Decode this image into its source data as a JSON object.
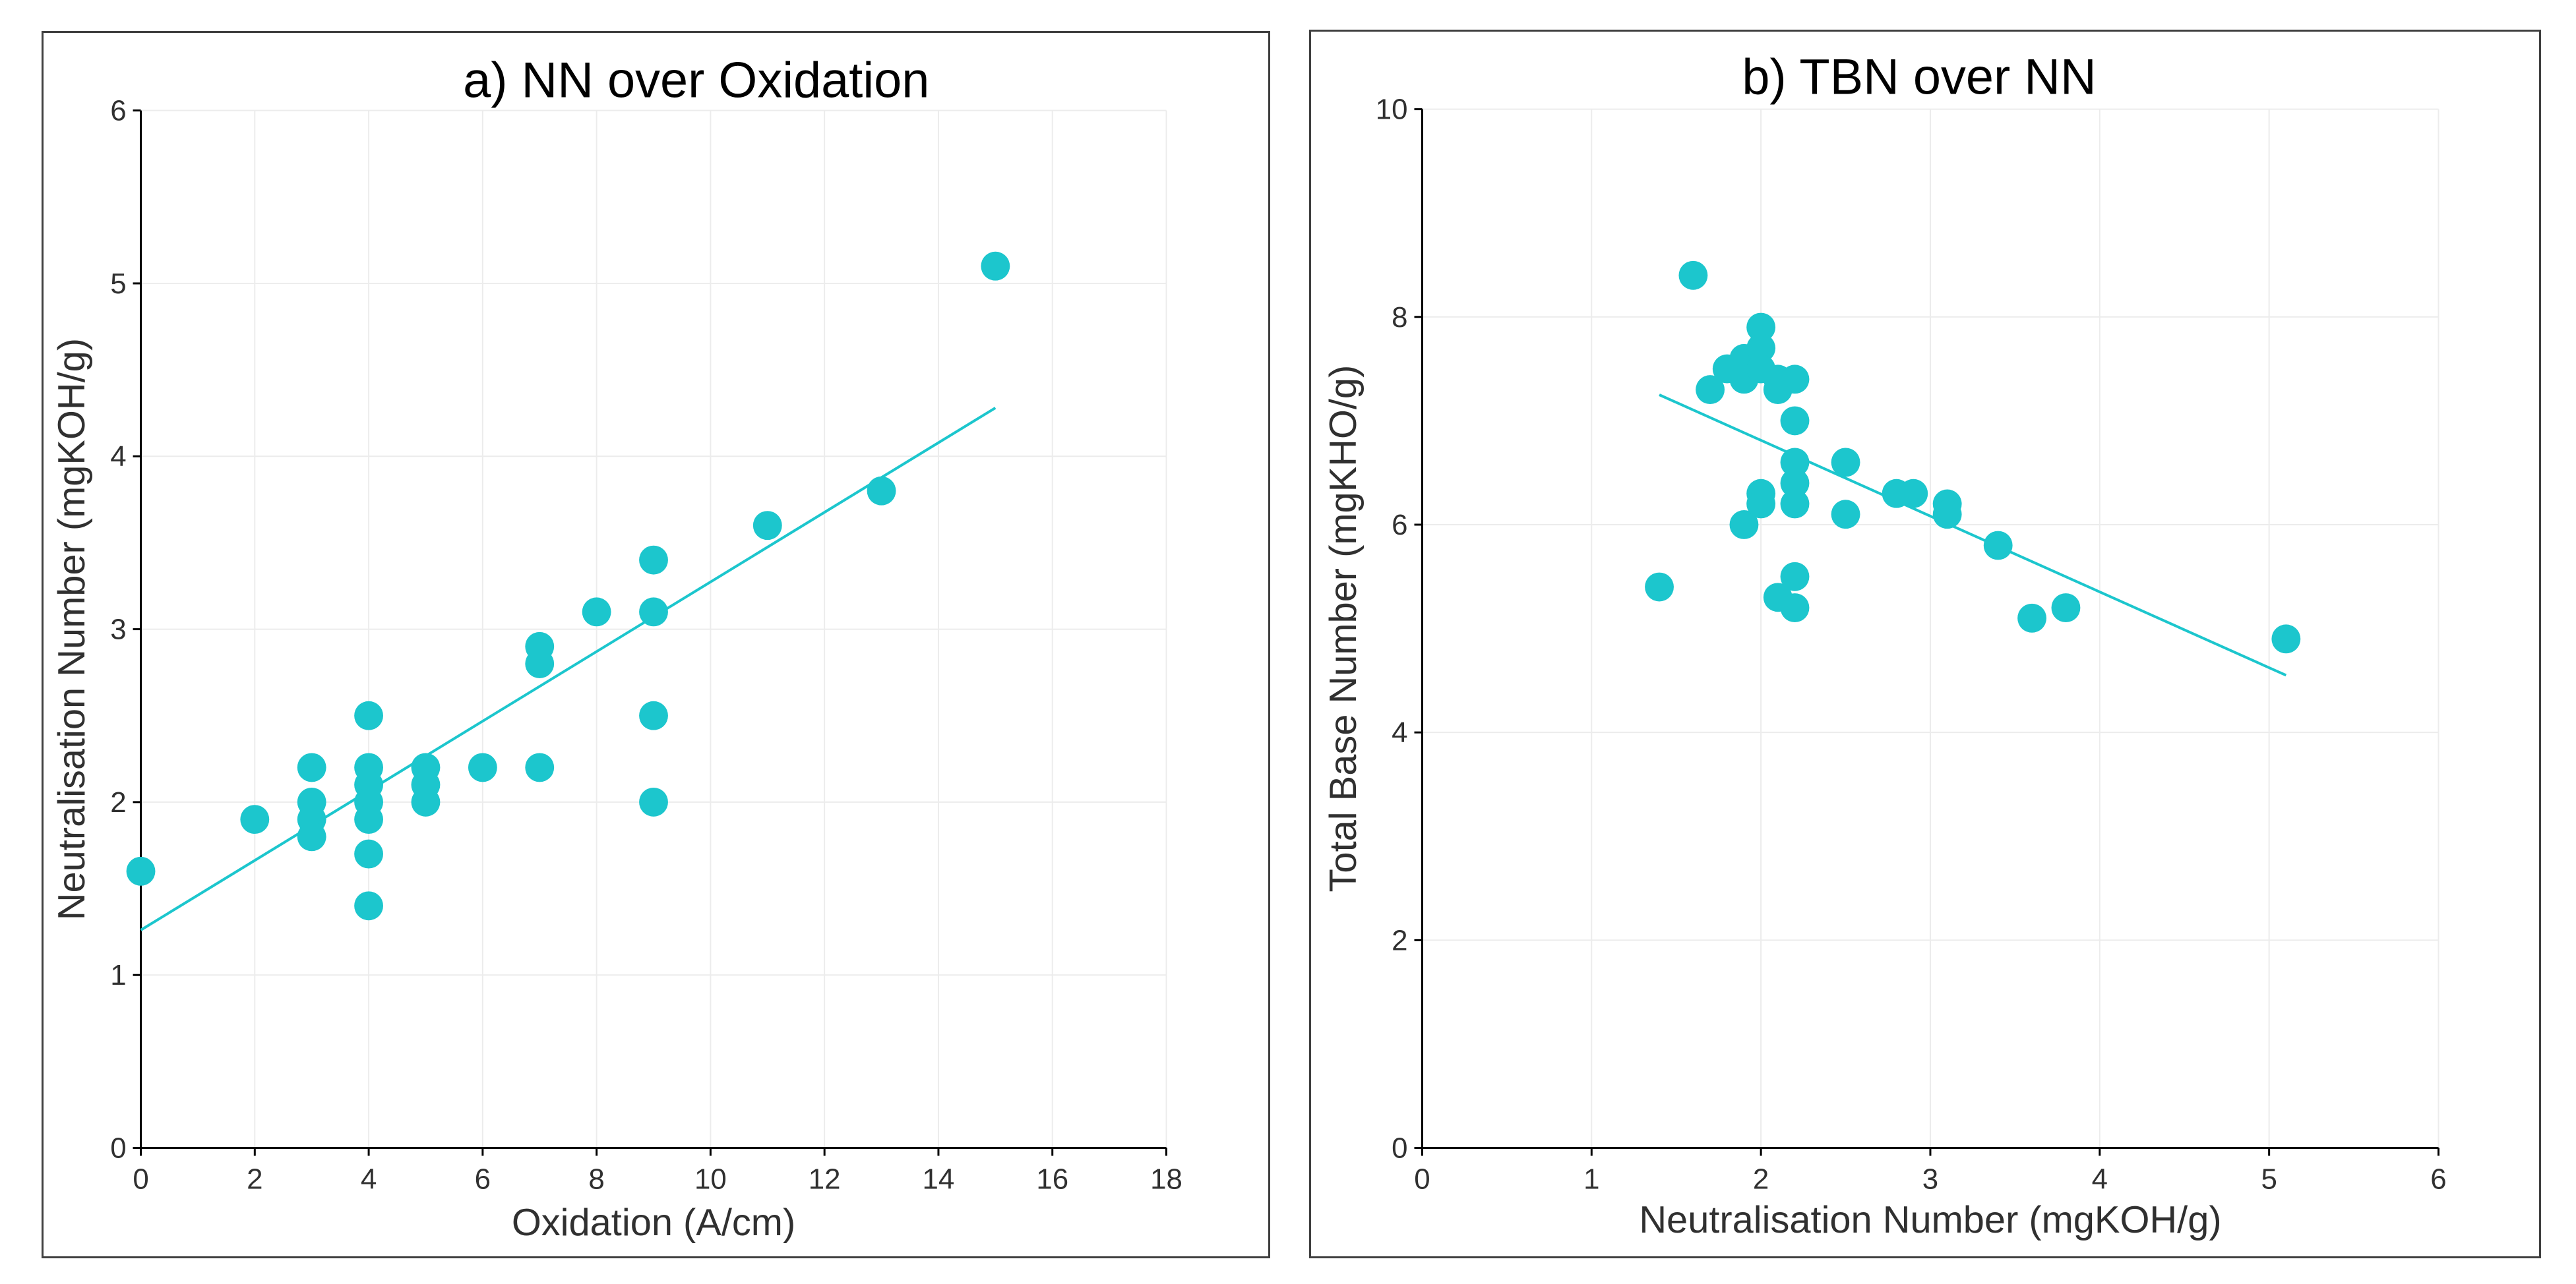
{
  "colors": {
    "marker": "#1cc6cd",
    "trendline": "#1cc6cd",
    "axis": "#000000",
    "grid": "#ececec"
  },
  "chart_data": [
    {
      "type": "scatter",
      "title": "a) NN over Oxidation",
      "xlabel": "Oxidation (A/cm)",
      "ylabel": "Neutralisation Number (mgKOH/g)",
      "xlim": [
        0,
        18
      ],
      "ylim": [
        0,
        6
      ],
      "xticks": [
        0,
        2,
        4,
        6,
        8,
        10,
        12,
        14,
        16,
        18
      ],
      "yticks": [
        0,
        1,
        2,
        3,
        4,
        5,
        6
      ],
      "grid": true,
      "points": [
        [
          0,
          1.6
        ],
        [
          2,
          1.9
        ],
        [
          3,
          2.2
        ],
        [
          3,
          2.0
        ],
        [
          3,
          1.9
        ],
        [
          3,
          1.8
        ],
        [
          4,
          2.5
        ],
        [
          4,
          2.2
        ],
        [
          4,
          2.1
        ],
        [
          4,
          2.0
        ],
        [
          4,
          1.9
        ],
        [
          4,
          1.7
        ],
        [
          4,
          1.4
        ],
        [
          5,
          2.2
        ],
        [
          5,
          2.1
        ],
        [
          5,
          2.0
        ],
        [
          6,
          2.2
        ],
        [
          7,
          2.9
        ],
        [
          7,
          2.8
        ],
        [
          7,
          2.2
        ],
        [
          8,
          3.1
        ],
        [
          9,
          3.4
        ],
        [
          9,
          3.1
        ],
        [
          9,
          2.5
        ],
        [
          9,
          2.0
        ],
        [
          11,
          3.6
        ],
        [
          13,
          3.8
        ],
        [
          15,
          5.1
        ]
      ],
      "trendline": {
        "x": [
          0,
          15
        ],
        "y": [
          1.26,
          4.28
        ]
      }
    },
    {
      "type": "scatter",
      "title": "b) TBN over NN",
      "xlabel": "Neutralisation Number (mgKOH/g)",
      "ylabel": "Total Base Number (mgKHO/g)",
      "xlim": [
        0,
        6
      ],
      "ylim": [
        0,
        10
      ],
      "xticks": [
        0,
        1,
        2,
        3,
        4,
        5,
        6
      ],
      "yticks": [
        0,
        2,
        4,
        6,
        8,
        10
      ],
      "grid": true,
      "points": [
        [
          1.4,
          5.4
        ],
        [
          1.6,
          8.4
        ],
        [
          1.7,
          7.3
        ],
        [
          1.8,
          7.5
        ],
        [
          1.9,
          7.6
        ],
        [
          1.9,
          7.4
        ],
        [
          1.9,
          6.0
        ],
        [
          2.0,
          7.9
        ],
        [
          2.0,
          7.7
        ],
        [
          2.0,
          7.5
        ],
        [
          2.0,
          6.3
        ],
        [
          2.0,
          6.2
        ],
        [
          2.1,
          7.4
        ],
        [
          2.1,
          7.3
        ],
        [
          2.1,
          5.3
        ],
        [
          2.2,
          7.4
        ],
        [
          2.2,
          7.0
        ],
        [
          2.2,
          6.6
        ],
        [
          2.2,
          6.4
        ],
        [
          2.2,
          6.2
        ],
        [
          2.2,
          5.5
        ],
        [
          2.2,
          5.2
        ],
        [
          2.5,
          6.6
        ],
        [
          2.5,
          6.1
        ],
        [
          2.8,
          6.3
        ],
        [
          2.9,
          6.3
        ],
        [
          3.1,
          6.2
        ],
        [
          3.1,
          6.1
        ],
        [
          3.4,
          5.8
        ],
        [
          3.6,
          5.1
        ],
        [
          3.8,
          5.2
        ],
        [
          5.1,
          4.9
        ]
      ],
      "trendline": {
        "x": [
          1.4,
          5.1
        ],
        "y": [
          7.25,
          4.55
        ]
      }
    }
  ]
}
